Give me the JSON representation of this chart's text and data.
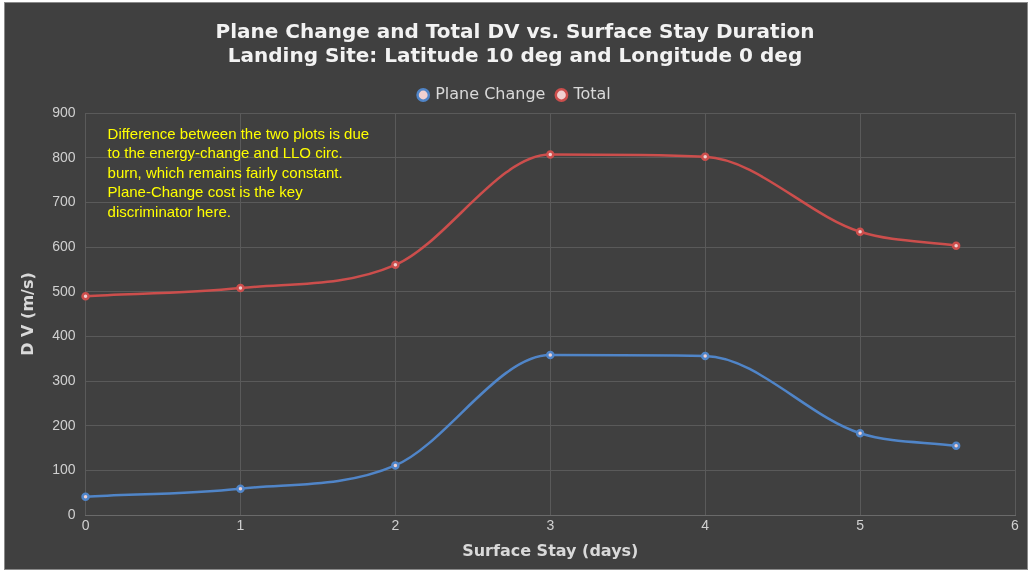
{
  "chart_data": {
    "type": "line",
    "title": "Plane Change and Total DV vs. Surface Stay Duration",
    "subtitle": "Landing Site: Latitude 10 deg and Longitude 0 deg",
    "xlabel": "Surface Stay (days)",
    "ylabel": "D V (m/s)",
    "x": [
      0,
      1,
      2,
      3,
      4,
      5,
      5.62
    ],
    "series": [
      {
        "name": "Plane Change",
        "color": "#5085c8",
        "values": [
          41,
          59,
          111,
          358,
          356,
          183,
          155
        ]
      },
      {
        "name": "Total",
        "color": "#cc4e4c",
        "values": [
          490,
          508,
          560,
          807,
          802,
          634,
          603
        ]
      }
    ],
    "xlim": [
      0,
      6
    ],
    "xticks": [
      0,
      1,
      2,
      3,
      4,
      5,
      6
    ],
    "ylim": [
      0,
      900
    ],
    "yticks": [
      0,
      100,
      200,
      300,
      400,
      500,
      600,
      700,
      800,
      900
    ],
    "grid": true,
    "legend": "top",
    "marker": "circle",
    "line_style": "solid",
    "annotations": [
      "Difference between the two plots is due to the energy-change and LLO circ. burn, which remains fairly constant. Plane-Change cost is the key discriminator here."
    ]
  }
}
